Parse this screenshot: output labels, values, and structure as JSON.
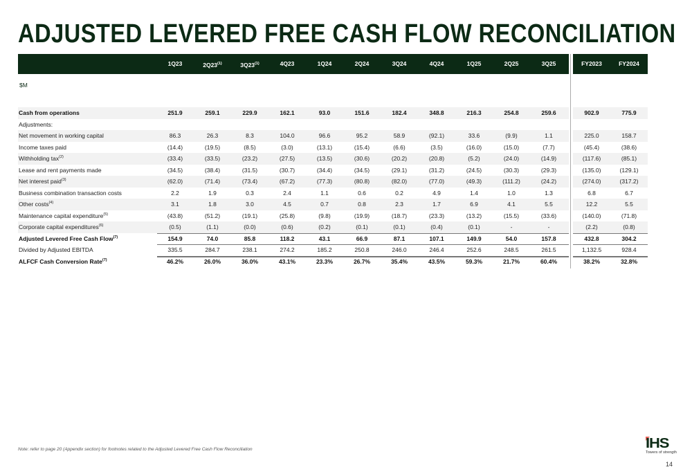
{
  "title": "ADJUSTED LEVERED FREE CASH FLOW RECONCILIATION",
  "unit": "$M",
  "columns": [
    {
      "label": "1Q23",
      "sup": ""
    },
    {
      "label": "2Q23",
      "sup": "(1)"
    },
    {
      "label": "3Q23",
      "sup": "(1)"
    },
    {
      "label": "4Q23",
      "sup": ""
    },
    {
      "label": "1Q24",
      "sup": ""
    },
    {
      "label": "2Q24",
      "sup": ""
    },
    {
      "label": "3Q24",
      "sup": ""
    },
    {
      "label": "4Q24",
      "sup": ""
    },
    {
      "label": "1Q25",
      "sup": ""
    },
    {
      "label": "2Q25",
      "sup": ""
    },
    {
      "label": "3Q25",
      "sup": ""
    },
    {
      "label": "FY2023",
      "sup": ""
    },
    {
      "label": "FY2024",
      "sup": ""
    }
  ],
  "rows": [
    {
      "label": "Cash from operations",
      "sup": "",
      "bold": true,
      "shaded": true,
      "values": [
        "251.9",
        "259.1",
        "229.9",
        "162.1",
        "93.0",
        "151.6",
        "182.4",
        "348.8",
        "216.3",
        "254.8",
        "259.6",
        "902.9",
        "775.9"
      ]
    },
    {
      "label": "Adjustments:",
      "sup": "",
      "bold": false,
      "shaded": false,
      "values": []
    },
    {
      "label": "Net movement in working capital",
      "sup": "",
      "bold": false,
      "shaded": true,
      "values": [
        "86.3",
        "26.3",
        "8.3",
        "104.0",
        "96.6",
        "95.2",
        "58.9",
        "(92.1)",
        "33.6",
        "(9.9)",
        "1.1",
        "225.0",
        "158.7"
      ]
    },
    {
      "label": "Income taxes paid",
      "sup": "",
      "bold": false,
      "shaded": false,
      "values": [
        "(14.4)",
        "(19.5)",
        "(8.5)",
        "(3.0)",
        "(13.1)",
        "(15.4)",
        "(6.6)",
        "(3.5)",
        "(16.0)",
        "(15.0)",
        "(7.7)",
        "(45.4)",
        "(38.6)"
      ]
    },
    {
      "label": "Withholding tax",
      "sup": "(2)",
      "bold": false,
      "shaded": true,
      "values": [
        "(33.4)",
        "(33.5)",
        "(23.2)",
        "(27.5)",
        "(13.5)",
        "(30.6)",
        "(20.2)",
        "(20.8)",
        "(5.2)",
        "(24.0)",
        "(14.9)",
        "(117.6)",
        "(85.1)"
      ]
    },
    {
      "label": "Lease and rent payments made",
      "sup": "",
      "bold": false,
      "shaded": false,
      "values": [
        "(34.5)",
        "(38.4)",
        "(31.5)",
        "(30.7)",
        "(34.4)",
        "(34.5)",
        "(29.1)",
        "(31.2)",
        "(24.5)",
        "(30.3)",
        "(29.3)",
        "(135.0)",
        "(129.1)"
      ]
    },
    {
      "label": "Net interest paid",
      "sup": "(3)",
      "bold": false,
      "shaded": true,
      "values": [
        "(62.0)",
        "(71.4)",
        "(73.4)",
        "(67.2)",
        "(77.3)",
        "(80.8)",
        "(82.0)",
        "(77.0)",
        "(49.3)",
        "(111.2)",
        "(24.2)",
        "(274.0)",
        "(317.2)"
      ]
    },
    {
      "label": "Business combination transaction costs",
      "sup": "",
      "bold": false,
      "shaded": false,
      "values": [
        "2.2",
        "1.9",
        "0.3",
        "2.4",
        "1.1",
        "0.6",
        "0.2",
        "4.9",
        "1.4",
        "1.0",
        "1.3",
        "6.8",
        "6.7"
      ]
    },
    {
      "label": "Other costs",
      "sup": "(4)",
      "bold": false,
      "shaded": true,
      "values": [
        "3.1",
        "1.8",
        "3.0",
        "4.5",
        "0.7",
        "0.8",
        "2.3",
        "1.7",
        "6.9",
        "4.1",
        "5.5",
        "12.2",
        "5.5"
      ]
    },
    {
      "label": "Maintenance capital expenditure",
      "sup": "(5)",
      "bold": false,
      "shaded": false,
      "values": [
        "(43.8)",
        "(51.2)",
        "(19.1)",
        "(25.8)",
        "(9.8)",
        "(19.9)",
        "(18.7)",
        "(23.3)",
        "(13.2)",
        "(15.5)",
        "(33.6)",
        "(140.0)",
        "(71.8)"
      ]
    },
    {
      "label": "Corporate capital expenditures",
      "sup": "(6)",
      "bold": false,
      "shaded": true,
      "values": [
        "(0.5)",
        "(1.1)",
        "(0.0)",
        "(0.6)",
        "(0.2)",
        "(0.1)",
        "(0.1)",
        "(0.4)",
        "(0.1)",
        "-",
        "-",
        "(2.2)",
        "(0.8)"
      ]
    },
    {
      "label": "Adjusted Levered Free Cash Flow",
      "sup": "(7)",
      "bold": true,
      "shaded": false,
      "values": [
        "154.9",
        "74.0",
        "85.8",
        "118.2",
        "43.1",
        "66.9",
        "87.1",
        "107.1",
        "149.9",
        "54.0",
        "157.8",
        "432.8",
        "304.2"
      ]
    },
    {
      "label": "Divided by Adjusted EBITDA",
      "sup": "",
      "bold": false,
      "shaded": false,
      "values": [
        "335.5",
        "284.7",
        "238.1",
        "274.2",
        "185.2",
        "250.8",
        "246.0",
        "246.4",
        "252.6",
        "248.5",
        "261.5",
        "1,132.5",
        "928.4"
      ]
    },
    {
      "label": "ALFCF Cash Conversion Rate",
      "sup": "(7)",
      "bold": true,
      "shaded": false,
      "values": [
        "46.2%",
        "26.0%",
        "36.0%",
        "43.1%",
        "23.3%",
        "26.7%",
        "35.4%",
        "43.5%",
        "59.3%",
        "21.7%",
        "60.4%",
        "38.2%",
        "32.8%"
      ]
    }
  ],
  "note": "Note: refer to page 20 (Appendix section) for footnotes related to the Adjusted Levered Free Cash Flow Reconciliation",
  "logo": {
    "text": "IHS",
    "tagline": "Towers of strength"
  },
  "page_number": "14",
  "colors": {
    "brand": "#0c2a15",
    "accent": "#e8615a",
    "band": "#f2f2f2"
  }
}
